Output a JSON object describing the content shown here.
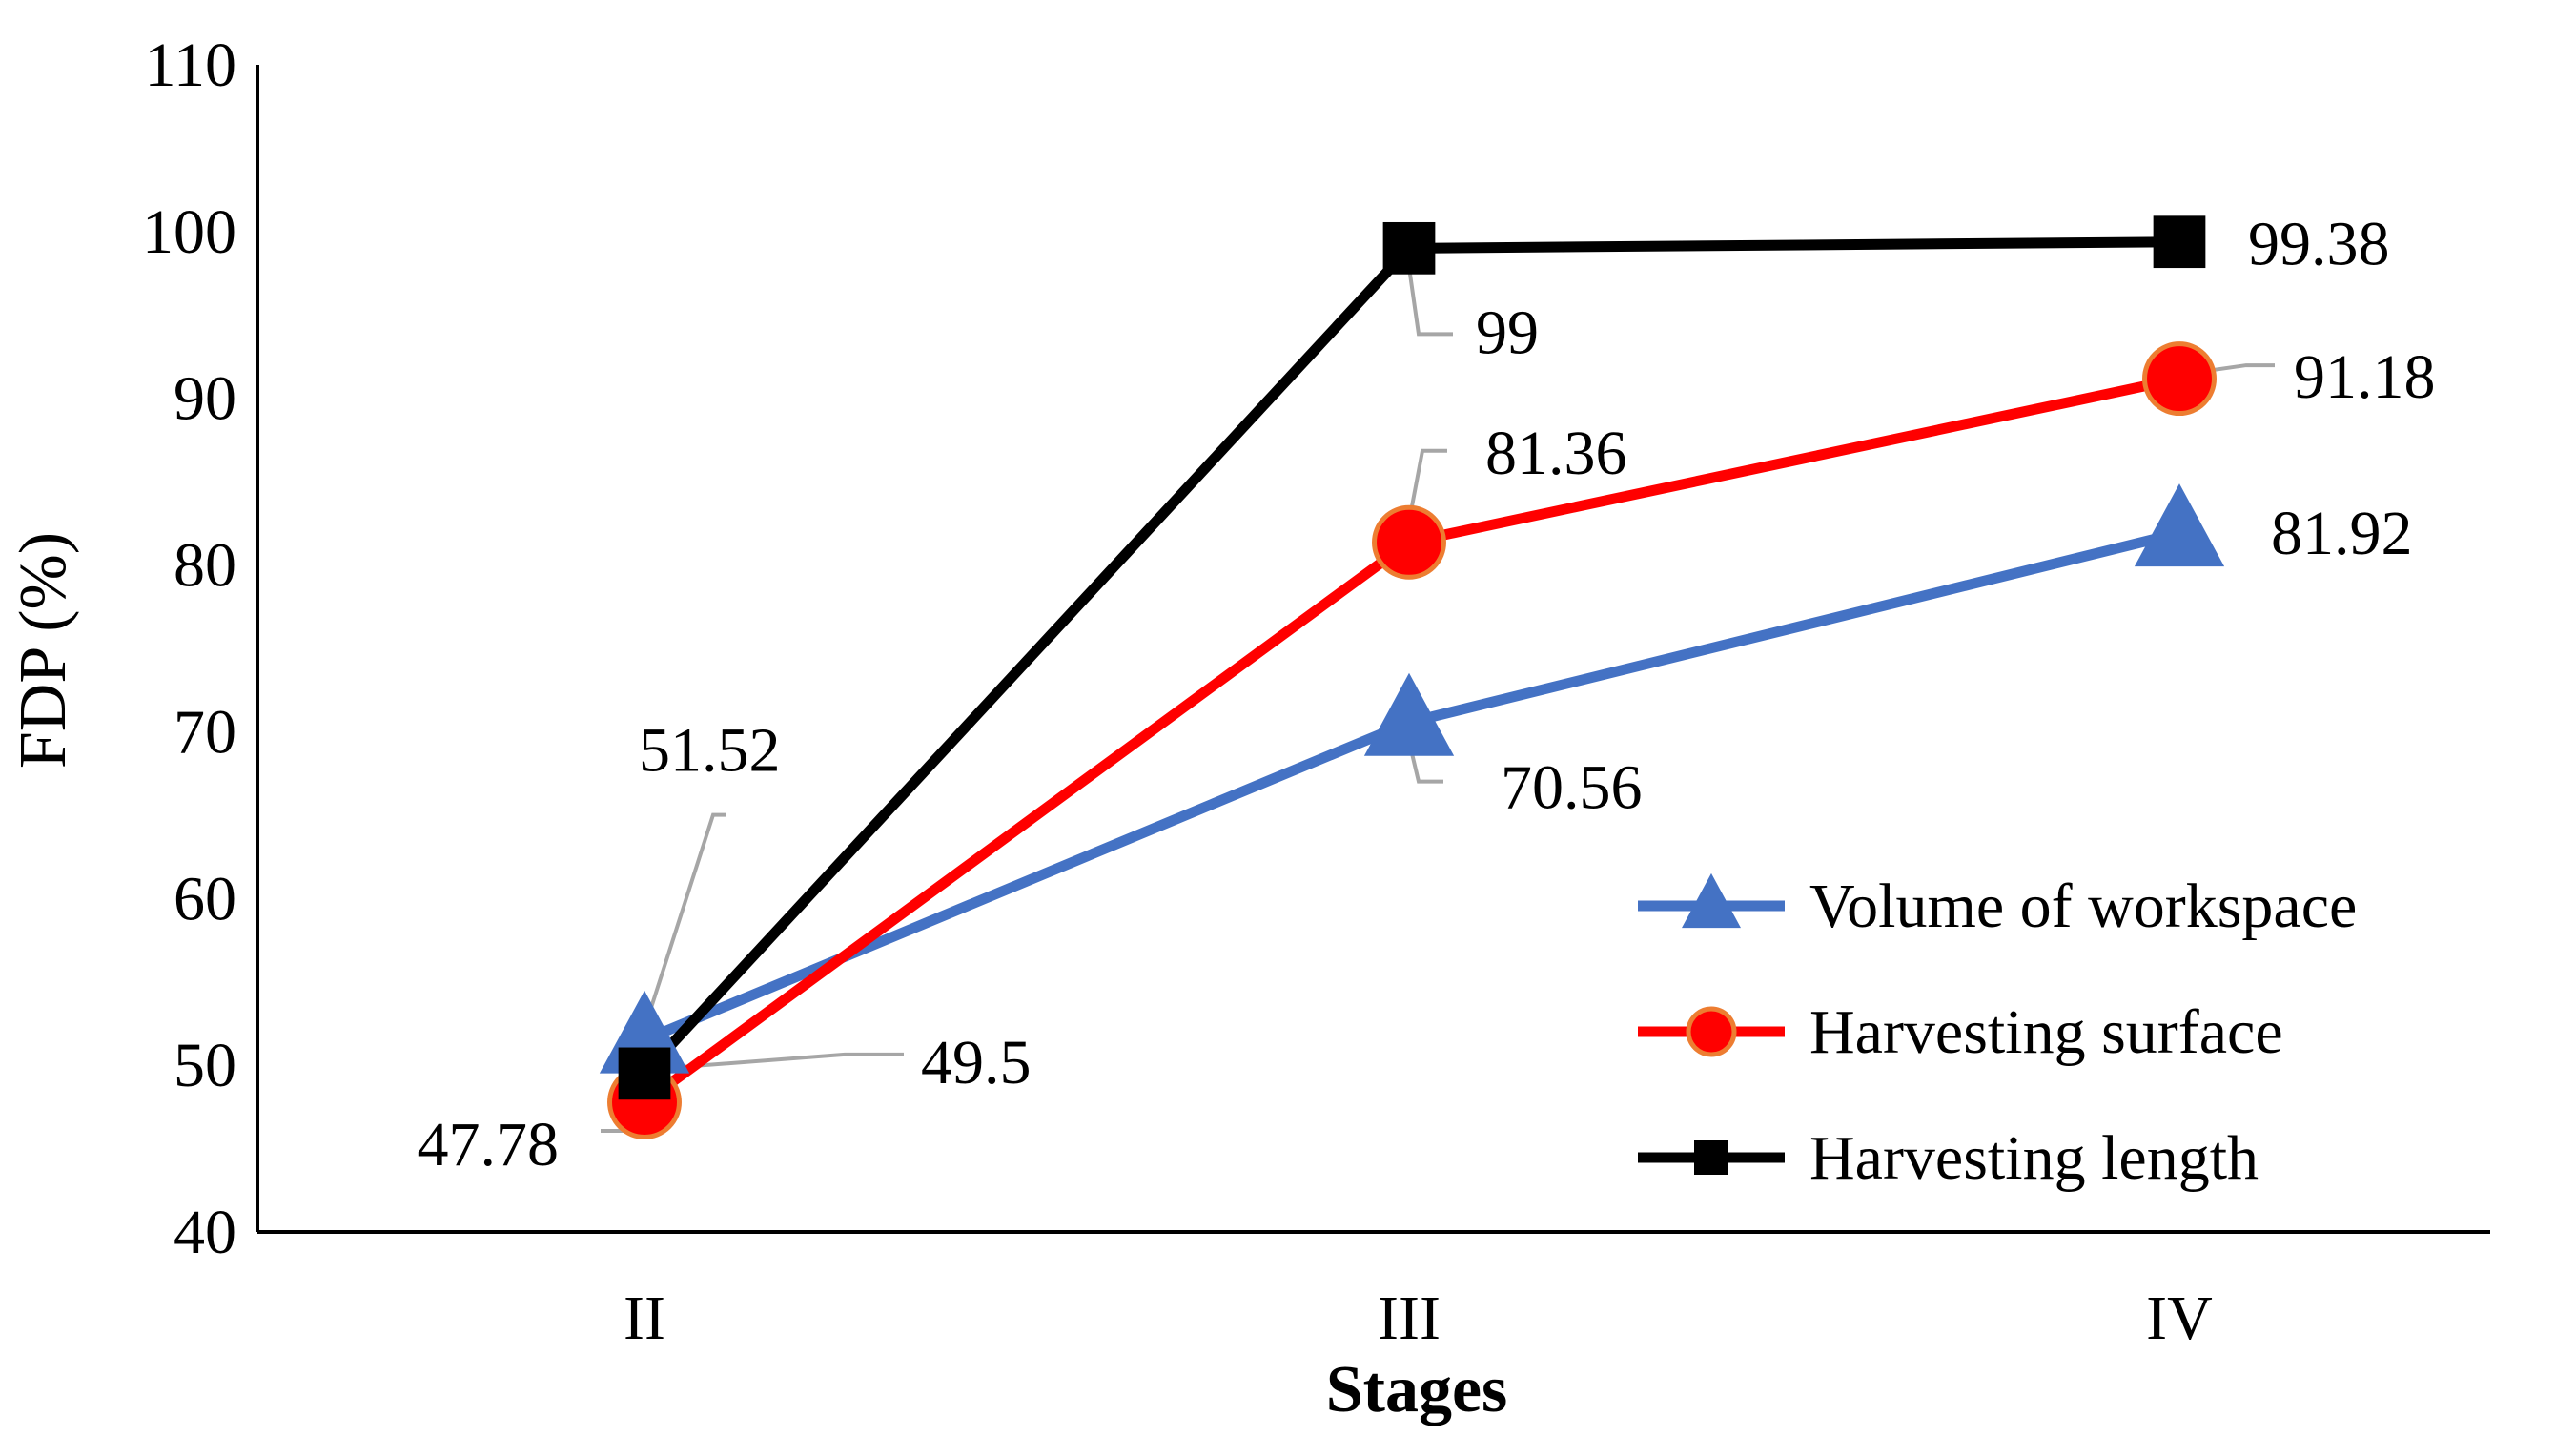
{
  "chart_data": {
    "type": "line",
    "title": "",
    "xlabel": "Stages",
    "ylabel": "FDP (%)",
    "categories": [
      "II",
      "III",
      "IV"
    ],
    "ylim": [
      40,
      110
    ],
    "yticks": [
      40,
      50,
      60,
      70,
      80,
      90,
      100,
      110
    ],
    "grid": false,
    "legend_position": "bottom-right",
    "series": [
      {
        "name": "Volume of workspace",
        "values": [
          51.52,
          70.56,
          81.92
        ],
        "color": "#4472C4",
        "marker": "triangle",
        "labels": [
          "51.52",
          "70.56",
          "81.92"
        ]
      },
      {
        "name": "Harvesting surface",
        "values": [
          47.78,
          81.36,
          91.18
        ],
        "color": "#FF0000",
        "marker_edge": "#ED7D31",
        "marker": "circle",
        "labels": [
          "47.78",
          "81.36",
          "91.18"
        ]
      },
      {
        "name": "Harvesting length",
        "values": [
          49.5,
          99,
          99.38
        ],
        "color": "#000000",
        "marker": "square",
        "labels": [
          "49.5",
          "99",
          "99.38"
        ]
      }
    ],
    "leader_color": "#A6A6A6"
  }
}
